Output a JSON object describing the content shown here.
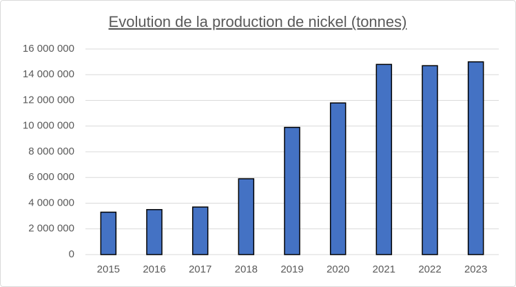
{
  "chart_data": {
    "type": "bar",
    "title": "Evolution de la production de nickel (tonnes)",
    "categories": [
      "2015",
      "2016",
      "2017",
      "2018",
      "2019",
      "2020",
      "2021",
      "2022",
      "2023"
    ],
    "values": [
      3300000,
      3500000,
      3700000,
      5900000,
      9900000,
      11800000,
      14800000,
      14700000,
      15000000
    ],
    "color": "#4472c4",
    "ylim": [
      0,
      16000000
    ],
    "yticks": [
      0,
      {
        "value": 2000000,
        "label": "2 000 000"
      },
      {
        "value": 4000000,
        "label": "4 000 000"
      },
      {
        "value": 6000000,
        "label": "6 000 000"
      },
      {
        "value": 8000000,
        "label": "8 000 000"
      },
      {
        "value": 10000000,
        "label": "10 000 000"
      },
      {
        "value": 12000000,
        "label": "12 000 000"
      },
      {
        "value": 14000000,
        "label": "14 000 000"
      },
      {
        "value": 16000000,
        "label": "16 000 000"
      }
    ],
    "grid": true
  }
}
